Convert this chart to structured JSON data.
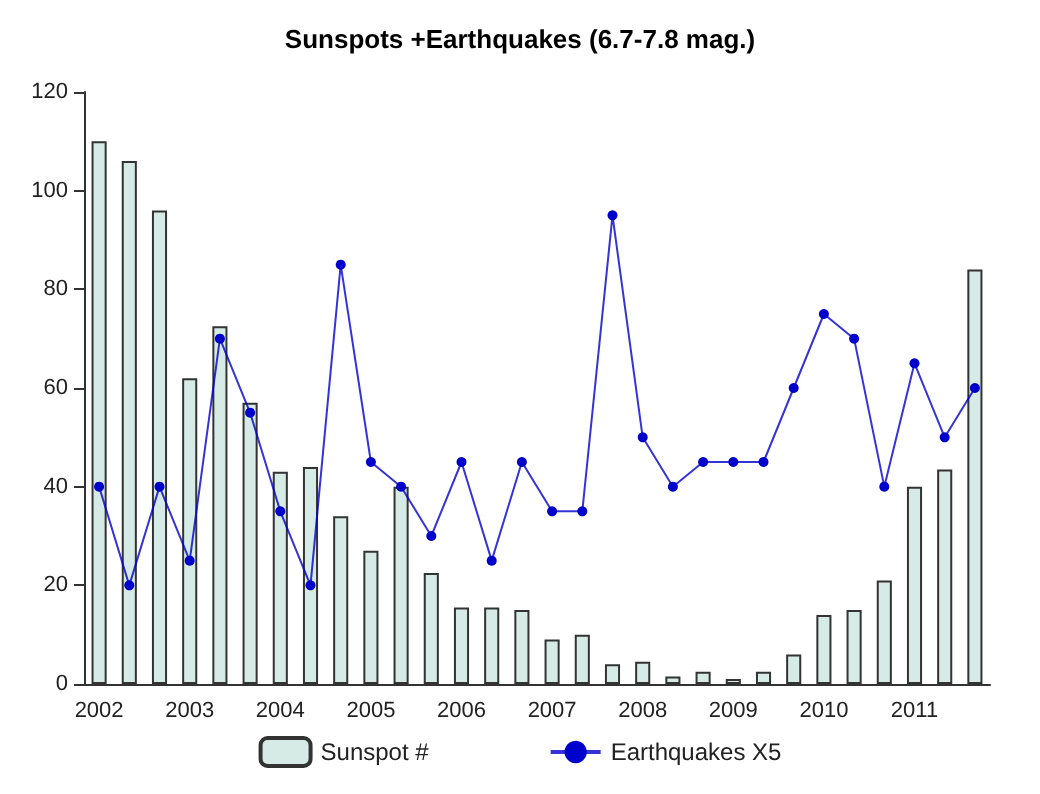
{
  "chart_data": {
    "type": "bar",
    "title": "Sunspots +Earthquakes (6.7-7.8 mag.)",
    "categories": [
      "2002",
      null,
      null,
      "2003",
      null,
      null,
      "2004",
      null,
      null,
      "2005",
      null,
      null,
      "2006",
      null,
      null,
      "2007",
      null,
      null,
      "2008",
      null,
      null,
      "2009",
      null,
      null,
      "2010",
      null,
      null,
      "2011",
      null,
      null
    ],
    "series": [
      {
        "name": "Sunspot #",
        "color": "#d6ebe6",
        "values": [
          110,
          106,
          96,
          62,
          72.5,
          57,
          43,
          44,
          34,
          27,
          40,
          22.5,
          15.5,
          15.5,
          15,
          9,
          10,
          4,
          4.5,
          1.5,
          2.5,
          1,
          2.5,
          6,
          14,
          15,
          21,
          40,
          43.5,
          84
        ]
      },
      {
        "name": "Earthquakes X5",
        "type": "line",
        "color": "#0000cc",
        "values": [
          40,
          20,
          40,
          25,
          70,
          55,
          35,
          20,
          85,
          45,
          40,
          30,
          45,
          25,
          45,
          35,
          35,
          95,
          50,
          40,
          45,
          45,
          45,
          60,
          75,
          70,
          40,
          65,
          50,
          60
        ]
      }
    ],
    "ylim": [
      0,
      120
    ],
    "yticks": [
      0,
      20,
      40,
      60,
      80,
      100,
      120
    ],
    "grid": false,
    "legend": "bottom",
    "marker": "circle"
  }
}
